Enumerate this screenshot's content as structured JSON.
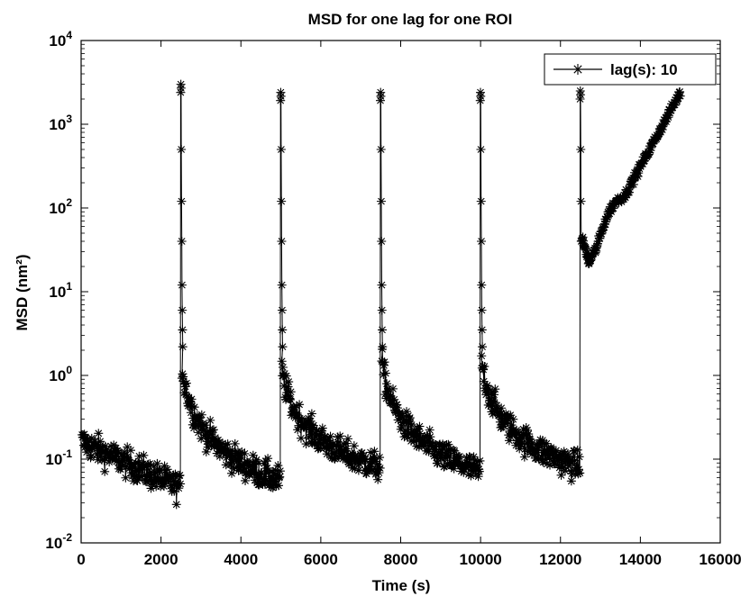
{
  "chart_data": {
    "type": "line",
    "title": "MSD for one lag for one ROI",
    "xlabel": "Time (s)",
    "ylabel": "MSD (nm²)",
    "xlim": [
      0,
      16000
    ],
    "ylim": [
      0.01,
      10000
    ],
    "yscale": "log",
    "x_ticks": [
      0,
      2000,
      4000,
      6000,
      8000,
      10000,
      12000,
      14000,
      16000
    ],
    "x_tick_labels": [
      "0",
      "2000",
      "4000",
      "6000",
      "8000",
      "10000",
      "12000",
      "14000",
      "16000"
    ],
    "y_ticks": [
      0.01,
      0.1,
      1,
      10,
      100,
      1000,
      10000
    ],
    "y_tick_labels": [
      {
        "base": "10",
        "exp": "-2"
      },
      {
        "base": "10",
        "exp": "-1"
      },
      {
        "base": "10",
        "exp": "0"
      },
      {
        "base": "10",
        "exp": "1"
      },
      {
        "base": "10",
        "exp": "2"
      },
      {
        "base": "10",
        "exp": "3"
      },
      {
        "base": "10",
        "exp": "4"
      }
    ],
    "grid": false,
    "legend_position": "top-right",
    "marker": "asterisk",
    "color": "#000000",
    "series": [
      {
        "name": "lag(s): 10",
        "segments": [
          {
            "x_start": 0,
            "x_end": 2500,
            "y_start": 0.16,
            "y_end": 0.045,
            "spike_x": 2500,
            "spike_y": 3000
          },
          {
            "x_start": 2500,
            "x_end": 5000,
            "y_start": 1.3,
            "y_end": 0.055,
            "spike_x": 5000,
            "spike_y": 2400
          },
          {
            "x_start": 5000,
            "x_end": 7500,
            "y_start": 1.2,
            "y_end": 0.08,
            "spike_x": 7500,
            "spike_y": 2400
          },
          {
            "x_start": 7500,
            "x_end": 10000,
            "y_start": 1.5,
            "y_end": 0.07,
            "spike_x": 10000,
            "spike_y": 2400
          },
          {
            "x_start": 10000,
            "x_end": 12500,
            "y_start": 1.5,
            "y_end": 0.08,
            "spike_x": 12500,
            "spike_y": 2500
          },
          {
            "x_start": 12500,
            "x_end": 15000,
            "y_start": 25,
            "y_end": 2400,
            "min_x": 12700,
            "min_y": 22
          }
        ]
      }
    ]
  }
}
